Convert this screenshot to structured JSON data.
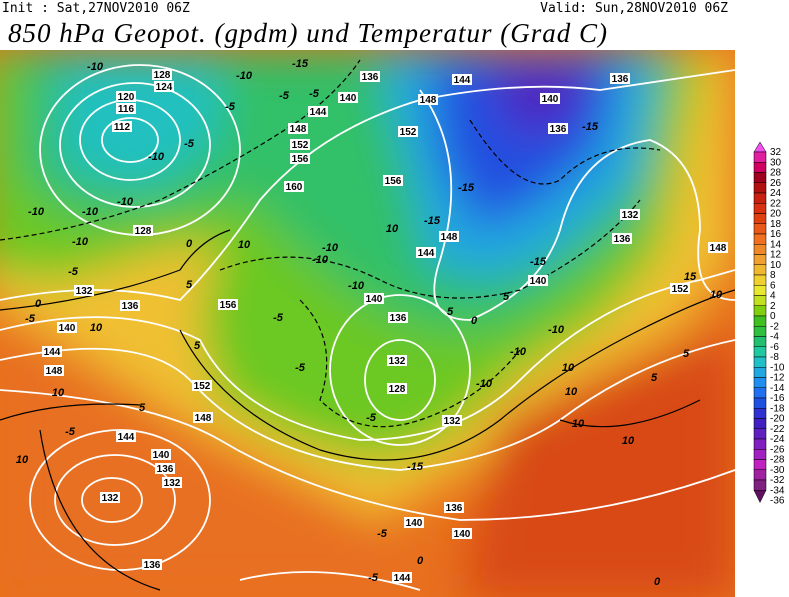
{
  "header": {
    "init": "Init : Sat,27NOV2010 06Z",
    "valid": "Valid: Sun,28NOV2010 06Z",
    "title": "850 hPa Geopot. (gpdm) und Temperatur (Grad C)"
  },
  "colorbar": {
    "levels": [
      32,
      30,
      28,
      26,
      24,
      22,
      20,
      18,
      16,
      14,
      12,
      10,
      8,
      6,
      4,
      2,
      0,
      -2,
      -4,
      -6,
      -8,
      -10,
      -12,
      -14,
      -16,
      -18,
      -20,
      -22,
      -24,
      -26,
      -28,
      -30,
      -32,
      -34,
      -36
    ],
    "colors": [
      "#f050f0",
      "#e020a0",
      "#d00060",
      "#a00020",
      "#b01010",
      "#c82010",
      "#d83010",
      "#e04010",
      "#e85818",
      "#f07020",
      "#f08828",
      "#f0a030",
      "#f0b830",
      "#f0d030",
      "#e8e830",
      "#c0e020",
      "#80d010",
      "#40c020",
      "#30c040",
      "#20c070",
      "#20c8a0",
      "#20c0c8",
      "#20a8e0",
      "#2090f0",
      "#2070f0",
      "#2050e0",
      "#3030d0",
      "#4020c0",
      "#6020c0",
      "#8020c0",
      "#a020c0",
      "#c020c0",
      "#a020a0",
      "#802080",
      "#601060"
    ]
  },
  "geopotential_labels": [
    128,
    124,
    120,
    116,
    112,
    136,
    144,
    148,
    140,
    144,
    148,
    152,
    156,
    160,
    152,
    156,
    136,
    140,
    136,
    132,
    136,
    148,
    152,
    128,
    132,
    136,
    140,
    144,
    148,
    156,
    152,
    148,
    144,
    140,
    136,
    132,
    132,
    136,
    140,
    140,
    136,
    144,
    132,
    128,
    132,
    136,
    140,
    144,
    148,
    140
  ],
  "temperature_labels": [
    -10,
    -10,
    -5,
    -15,
    -5,
    -5,
    -10,
    -5,
    -15,
    -15,
    -10,
    -10,
    -10,
    -10,
    -5,
    0,
    -5,
    10,
    10,
    10,
    5,
    5,
    -5,
    -5,
    -5,
    0,
    -10,
    -10,
    -10,
    -15,
    -15,
    -10,
    -10,
    -10,
    -15,
    -5,
    -5,
    -5,
    0,
    5,
    10,
    10,
    10,
    10,
    15,
    10,
    5,
    0,
    10,
    5,
    10,
    5,
    0,
    5
  ]
}
